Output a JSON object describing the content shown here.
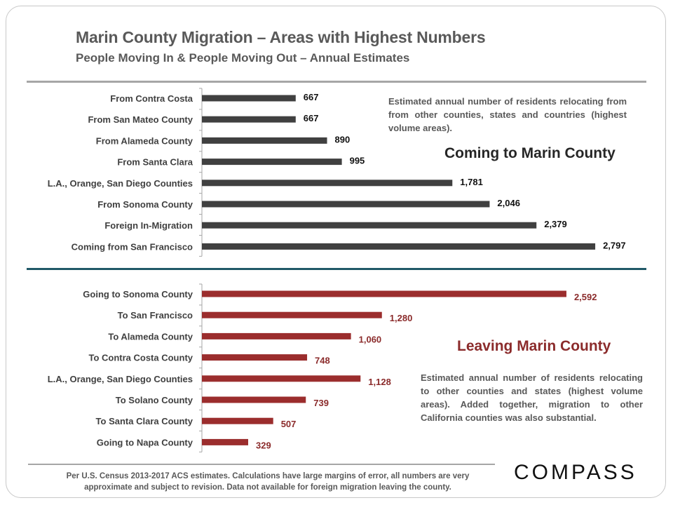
{
  "title": "Marin County Migration – Areas with Highest Numbers",
  "subtitle": "People Moving In & People Moving Out – Annual Estimates",
  "coming_heading": "Coming to Marin  County",
  "coming_note": "Estimated annual number of  residents relocating from  from other counties, states and countries (highest volume areas).",
  "leaving_heading": "Leaving Marin County",
  "leaving_note": "Estimated annual number of  residents relocating to  other counties and states (highest volume areas). Added together, migration to other California counties was also substantial.",
  "footer": "Per U.S. Census 2013-2017 ACS estimates. Calculations  have large margins of error, all numbers are very approximate and subject to revision. Data not available for foreign migration leaving the county.",
  "logo": "COMPASS",
  "colors": {
    "incoming": "#404040",
    "outgoing": "#9b2d2d",
    "divider": "#215968"
  },
  "chart_data": {
    "type": "bar",
    "orientation": "horizontal",
    "xlim": [
      0,
      2800
    ],
    "series": [
      {
        "name": "Coming to Marin County",
        "categories": [
          "From Contra Costa",
          "From San Mateo County",
          "From Alameda County",
          "From Santa Clara",
          "L.A., Orange, San Diego Counties",
          "From Sonoma County",
          "Foreign In-Migration",
          "Coming from San Francisco"
        ],
        "values": [
          667,
          667,
          890,
          995,
          1781,
          2046,
          2379,
          2797
        ],
        "value_labels": [
          "667",
          "667",
          "890",
          "995",
          "1,781",
          "2,046",
          "2,379",
          "2,797"
        ]
      },
      {
        "name": "Leaving Marin County",
        "categories": [
          "Going to Sonoma County",
          "To San Francisco",
          "To Alameda County",
          "To Contra Costa County",
          "L.A., Orange, San Diego Counties",
          "To Solano County",
          "To Santa Clara County",
          "Going to Napa County"
        ],
        "values": [
          2592,
          1280,
          1060,
          748,
          1128,
          739,
          507,
          329
        ],
        "value_labels": [
          "2,592",
          "1,280",
          "1,060",
          "748",
          "1,128",
          "739",
          "507",
          "329"
        ]
      }
    ]
  }
}
